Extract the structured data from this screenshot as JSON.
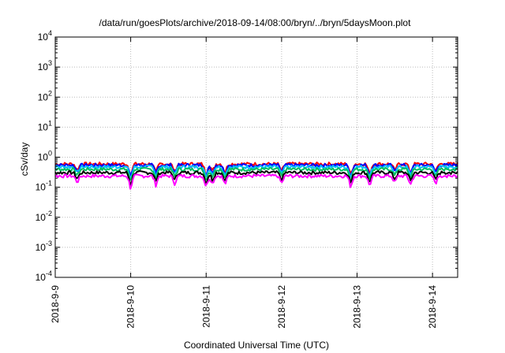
{
  "chart_data": {
    "type": "line",
    "title": "/data/run/goesPlots/archive/2018-09-14/08:00/bryn/../bryn/5daysMoon.plot",
    "xlabel": "Coordinated Universal Time (UTC)",
    "ylabel": "cSv/day",
    "yscale": "log",
    "ylim": [
      0.0001,
      10000
    ],
    "xlim": [
      "2018-09-09",
      "2018-09-14 08:00"
    ],
    "grid": true,
    "x_ticks": [
      {
        "date": "2018-09-09",
        "label": "2018-9-9"
      },
      {
        "date": "2018-09-10",
        "label": "2018-9-10"
      },
      {
        "date": "2018-09-11",
        "label": "2018-9-11"
      },
      {
        "date": "2018-09-12",
        "label": "2018-9-12"
      },
      {
        "date": "2018-09-13",
        "label": "2018-9-13"
      },
      {
        "date": "2018-09-14",
        "label": "2018-9-14"
      }
    ],
    "y_ticks": [
      {
        "value": 0.0001,
        "base": "10",
        "exp": "-4"
      },
      {
        "value": 0.001,
        "base": "10",
        "exp": "-3"
      },
      {
        "value": 0.01,
        "base": "10",
        "exp": "-2"
      },
      {
        "value": 0.1,
        "base": "10",
        "exp": "-1"
      },
      {
        "value": 1,
        "base": "10",
        "exp": "0"
      },
      {
        "value": 10,
        "base": "10",
        "exp": "1"
      },
      {
        "value": 100,
        "base": "10",
        "exp": "2"
      },
      {
        "value": 1000,
        "base": "10",
        "exp": "3"
      },
      {
        "value": 10000,
        "base": "10",
        "exp": "4"
      }
    ],
    "series": [
      {
        "color": "#ff0000",
        "level": 0.6,
        "dip": 0.18
      },
      {
        "color": "#0000ff",
        "level": 0.55,
        "dip": 0.2
      },
      {
        "color": "#00bfff",
        "level": 0.48,
        "dip": 0.18
      },
      {
        "color": "#00c060",
        "level": 0.4,
        "dip": 0.16
      },
      {
        "color": "#000000",
        "level": 0.31,
        "dip": 0.14
      },
      {
        "color": "#ff00ff",
        "level": 0.24,
        "dip": 0.12
      }
    ],
    "dips": [
      {
        "date": "2018-09-09 07:00",
        "factor": 0.6
      },
      {
        "date": "2018-09-10",
        "factor": 0.35
      },
      {
        "date": "2018-09-10 08:00",
        "factor": 0.5
      },
      {
        "date": "2018-09-10 14:00",
        "factor": 0.55
      },
      {
        "date": "2018-09-11",
        "factor": 0.4
      },
      {
        "date": "2018-09-11 02:00",
        "factor": 0.55
      },
      {
        "date": "2018-09-11 06:00",
        "factor": 0.5
      },
      {
        "date": "2018-09-12",
        "factor": 0.55
      },
      {
        "date": "2018-09-12 22:00",
        "factor": 0.4
      },
      {
        "date": "2018-09-13 04:00",
        "factor": 0.45
      },
      {
        "date": "2018-09-13 12:00",
        "factor": 0.6
      },
      {
        "date": "2018-09-13 17:00",
        "factor": 0.5
      },
      {
        "date": "2018-09-14 01:00",
        "factor": 0.55
      }
    ]
  }
}
